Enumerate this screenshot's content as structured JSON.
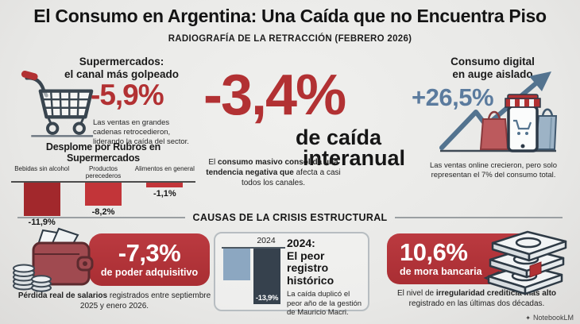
{
  "header": {
    "title": "El Consumo en Argentina: Una Caída que no Encuentra Piso",
    "subtitle": "RADIOGRAFÍA DE LA RETRACCIÓN (FEBRERO 2026)"
  },
  "top": {
    "supermarkets": {
      "heading_line1": "Supermercados:",
      "heading_line2": "el canal más golpeado",
      "value": "-5,9%",
      "desc": "Las ventas en grandes cadenas retrocedieron, liderando la caída del sector."
    },
    "center": {
      "value": "-3,4%",
      "caption_line1": "de caída",
      "caption_line2": "interanual",
      "desc_pre": "El ",
      "desc_bold": "consumo masivo consolida una tendencia negativa que",
      "desc_post": " afecta a casi todos los canales."
    },
    "digital": {
      "heading_line1": "Consumo digital",
      "heading_line2": "en auge aislado",
      "value": "+26,5%",
      "desc": "Las ventas online crecieron, pero solo representan el 7% del consumo total."
    }
  },
  "divider": {
    "label": "CAUSAS DE LA CRISIS ESTRUCTURAL"
  },
  "bottom": {
    "purchasing_power": {
      "value": "-7,3%",
      "label": "de poder adquisitivo",
      "desc_bold": "Pérdida real de salarios",
      "desc_post": " registrados entre septiembre 2025 y enero 2026."
    },
    "record": {
      "heading_line1": "2024:",
      "heading_line2": "El peor registro",
      "heading_line3": "histórico",
      "desc": "La caída duplicó el peor año de la gestión de Mauricio Macri."
    },
    "delinquency": {
      "value": "10,6%",
      "label": "de mora bancaria",
      "desc_pre": "El nivel de ",
      "desc_bold": "irregularidad crediticia más alto",
      "desc_post": " registrado en las últimas dos décadas."
    }
  },
  "footer": {
    "watermark": "NotebookLM"
  },
  "colors": {
    "accent_red": "#b23133",
    "panel_red": "#b23439",
    "accent_blue": "#5b7b9e",
    "navy_bar": "#36414d",
    "light_blue_bar": "#8ca7c1",
    "dark_red_bar": "#a2282c",
    "red_bar": "#c23539"
  },
  "chart_data": [
    {
      "type": "bar",
      "title": "Desplome por Rubros en Supermercados",
      "categories": [
        "Bebidas sin alcohol",
        "Productos perecederos",
        "Alimentos en general"
      ],
      "values": [
        -11.9,
        -8.2,
        -1.1
      ],
      "value_labels": [
        "-11,9%",
        "-8,2%",
        "-1,1%"
      ],
      "bar_colors": [
        "#a2282c",
        "#c23539",
        "#c23539"
      ],
      "ylim": [
        -13,
        0
      ],
      "grid": false,
      "baseline": 0
    },
    {
      "type": "bar",
      "title": "2024: El peor registro histórico",
      "categories": [
        "",
        "2024"
      ],
      "values": [
        -8,
        -13.9
      ],
      "value_labels": [
        "",
        "-13,9%"
      ],
      "bar_colors": [
        "#8ca7c1",
        "#36414d"
      ],
      "ylim": [
        -15,
        0
      ],
      "grid": false,
      "note": "primera barra sin etiqueta; valor estimado según la altura de la barra"
    }
  ]
}
